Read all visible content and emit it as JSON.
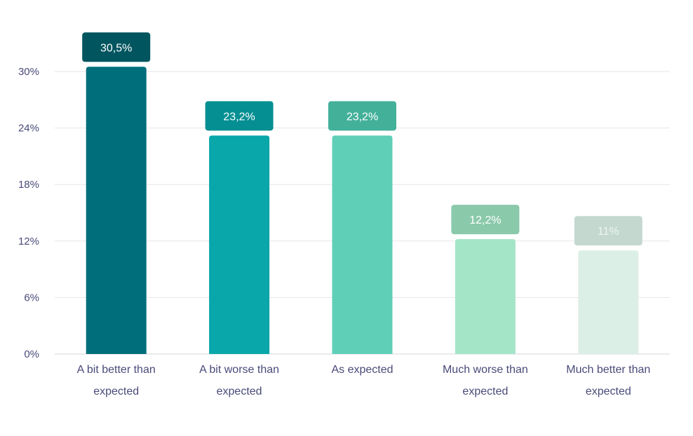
{
  "chart_data": {
    "type": "bar",
    "title": "",
    "xlabel": "",
    "ylabel": "",
    "categories": [
      [
        "A bit better than",
        "expected"
      ],
      [
        "A bit worse than",
        "expected"
      ],
      [
        "As expected"
      ],
      [
        "Much worse than",
        "expected"
      ],
      [
        "Much better than",
        "expected"
      ]
    ],
    "values": [
      30.5,
      23.2,
      23.2,
      12.2,
      11
    ],
    "value_labels": [
      "30,5%",
      "23,2%",
      "23,2%",
      "12,2%",
      "11%"
    ],
    "ylim": [
      0,
      30
    ],
    "yticks": [
      0,
      6,
      12,
      18,
      24,
      30
    ],
    "ytick_labels": [
      "0%",
      "6%",
      "12%",
      "18%",
      "24%",
      "30%"
    ],
    "grid": true,
    "legend": "none",
    "bar_colors": [
      "#016e7b",
      "#09a7a9",
      "#5fcfb8",
      "#a4e5c8",
      "#dcefe6"
    ],
    "label_bg_colors": [
      "#01555f",
      "#058f92",
      "#43b09a",
      "#8ac9aa",
      "#c4d8d0"
    ],
    "label_text_colors": [
      "#ffffff",
      "#ffffff",
      "#ffffff",
      "#ffffff",
      "#eef4f1"
    ]
  }
}
